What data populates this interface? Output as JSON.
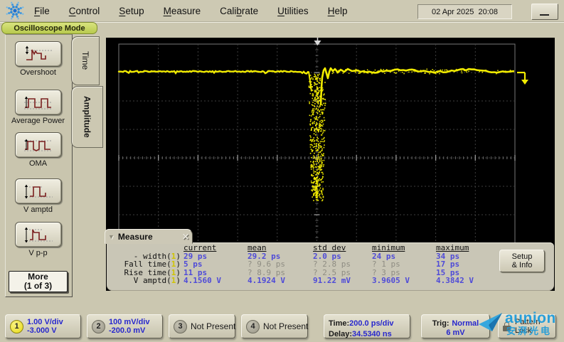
{
  "mode_label": "Oscilloscope Mode",
  "menubar": {
    "items": [
      {
        "label": "File",
        "u": 0
      },
      {
        "label": "Control",
        "u": 0
      },
      {
        "label": "Setup",
        "u": 0
      },
      {
        "label": "Measure",
        "u": 0
      },
      {
        "label": "Calibrate",
        "u": 4
      },
      {
        "label": "Utilities",
        "u": 0
      },
      {
        "label": "Help",
        "u": 0
      }
    ],
    "datetime": "02 Apr 2025  20:08",
    "minimize_label": "minimize"
  },
  "sidebar": {
    "tabs": [
      {
        "label": "Time",
        "active": false
      },
      {
        "label": "Amplitude",
        "active": true
      }
    ],
    "buttons": [
      {
        "id": "overshoot",
        "label": "Overshoot"
      },
      {
        "id": "average-power",
        "label": "Average Power"
      },
      {
        "id": "oma",
        "label": "OMA"
      },
      {
        "id": "v-amptd",
        "label": "V amptd"
      },
      {
        "id": "v-p-p",
        "label": "V p-p"
      }
    ],
    "more_button": {
      "line1": "More",
      "line2": "(1 of 3)"
    }
  },
  "measure_panel": {
    "title": "Measure",
    "columns": [
      "current",
      "mean",
      "std dev",
      "minimum",
      "maximum"
    ],
    "rows": [
      {
        "label": "- width",
        "ch": "1",
        "values": [
          "29 ps",
          "29.2 ps",
          "2.0 ps",
          "24 ps",
          "34 ps"
        ]
      },
      {
        "label": "Fall time",
        "ch": "1",
        "values": [
          "5 ps",
          "? 9.6 ps",
          "? 2.8 ps",
          "? 1 ps",
          "17 ps"
        ]
      },
      {
        "label": "Rise time",
        "ch": "1",
        "values": [
          "11 ps",
          "? 8.9 ps",
          "? 2.5 ps",
          "? 3 ps",
          "15 ps"
        ]
      },
      {
        "label": "V amptd",
        "ch": "1",
        "values": [
          "4.1560 V",
          "4.1924 V",
          "91.22 mV",
          "3.9605 V",
          "4.3842 V"
        ]
      }
    ],
    "setup_info_button": {
      "line1": "Setup",
      "line2": "& Info"
    }
  },
  "status_bar": {
    "channels": [
      {
        "num": "1",
        "line1": "1.00 V/div",
        "line2": "-3.000 V",
        "active": true
      },
      {
        "num": "2",
        "line1": "100 mV/div",
        "line2": "-200.0 mV",
        "active": false
      },
      {
        "num": "3",
        "line1": "Not Present",
        "line2": "",
        "active": false
      },
      {
        "num": "4",
        "line1": "Not Present",
        "line2": "",
        "active": false
      }
    ],
    "timebase": {
      "label1": "Time:",
      "value1": "200.0 ps/div",
      "label2": "Delay:",
      "value2": "34.5340 ns"
    },
    "trigger": {
      "label": "Trig:",
      "value1": "Normal",
      "value2": "6 mV"
    },
    "pattern_lock": {
      "line1": "Pattern",
      "line2": "Lock"
    }
  },
  "watermark": {
    "text": "aunion",
    "subtext": "安湃光电"
  },
  "chart_data": {
    "type": "line",
    "title": "Oscilloscope trace, channel 1",
    "description": "Flat baseline one division below graticule top with a narrow negative-going pulse at screen center; noisy/ringing baseline after the pulse; trigger marker at top center and yellow trigger-level marker at right edge.",
    "x_axis": {
      "label": "time",
      "scale": "200.0 ps/div",
      "divisions": 10,
      "delay": "34.5340 ns"
    },
    "y_axis": {
      "label": "channel 1 voltage",
      "scale": "1.00 V/div",
      "divisions": 8,
      "offset": "-3.000 V"
    },
    "baseline_div_from_top": 1.0,
    "pulse": {
      "center_division_x": 5.0,
      "depth_divisions": 4.4,
      "width": "29 ps",
      "v_amptd": "4.1560 V"
    },
    "trace_color": "#f2ec00",
    "grid": "10x8 dashed graticule with minor ticks on center axes"
  },
  "colors": {
    "background": "#cbc7b0",
    "screen": "#000000",
    "trace": "#f2ec00",
    "value_blue": "#4f4bd8",
    "status_blue": "#2727cd",
    "mode_pill": "#c6d466",
    "watermark_blue": "#1b9ada",
    "channel_badge_active": "#e7da12"
  }
}
